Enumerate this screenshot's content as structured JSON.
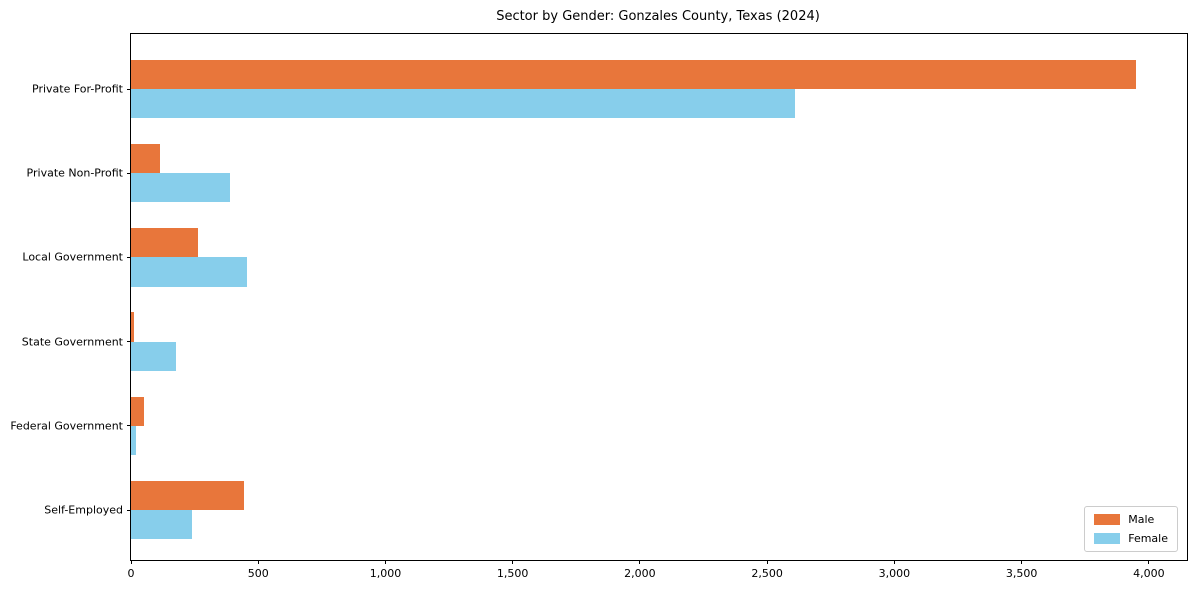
{
  "chart_data": {
    "type": "bar",
    "orientation": "horizontal",
    "title": "Sector by Gender: Gonzales County, Texas (2024)",
    "categories": [
      "Private For-Profit",
      "Private Non-Profit",
      "Local Government",
      "State Government",
      "Federal Government",
      "Self-Employed"
    ],
    "series": [
      {
        "name": "Male",
        "color": "#E8763B",
        "values": [
          3950,
          115,
          265,
          10,
          50,
          445
        ]
      },
      {
        "name": "Female",
        "color": "#87CEEB",
        "values": [
          2610,
          390,
          455,
          175,
          20,
          240
        ]
      }
    ],
    "xlabel": "",
    "ylabel": "",
    "xlim": [
      0,
      4150
    ],
    "xticks": [
      0,
      500,
      1000,
      1500,
      2000,
      2500,
      3000,
      3500,
      4000
    ],
    "xtick_labels": [
      "0",
      "500",
      "1,000",
      "1,500",
      "2,000",
      "2,500",
      "3,000",
      "3,500",
      "4,000"
    ],
    "grid": false,
    "legend": {
      "position": "lower right",
      "labels": [
        "Male",
        "Female"
      ]
    }
  }
}
